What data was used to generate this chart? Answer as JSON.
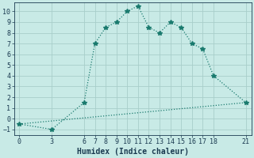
{
  "line1_x": [
    0,
    3,
    6,
    7,
    8,
    9,
    10,
    11,
    12,
    13,
    14,
    15,
    16,
    17,
    18,
    21
  ],
  "line1_y": [
    -0.5,
    -1.0,
    1.5,
    7.0,
    8.5,
    9.0,
    10.0,
    10.5,
    8.5,
    8.0,
    9.0,
    8.5,
    7.0,
    6.5,
    4.0,
    1.5
  ],
  "line2_x": [
    0,
    21
  ],
  "line2_y": [
    -0.5,
    1.5
  ],
  "line_color": "#1a7a6e",
  "bg_color": "#c8eae6",
  "grid_color": "#a8ceca",
  "xlabel": "Humidex (Indice chaleur)",
  "xlim": [
    -0.5,
    21.5
  ],
  "ylim": [
    -1.5,
    10.8
  ],
  "xticks": [
    0,
    3,
    6,
    7,
    8,
    9,
    10,
    11,
    12,
    13,
    14,
    15,
    16,
    17,
    18,
    21
  ],
  "yticks": [
    -1,
    0,
    1,
    2,
    3,
    4,
    5,
    6,
    7,
    8,
    9,
    10
  ],
  "marker": "*",
  "linewidth": 0.9,
  "markersize": 4,
  "font_color": "#1a3a50",
  "xlabel_fontsize": 7,
  "tick_fontsize": 6
}
